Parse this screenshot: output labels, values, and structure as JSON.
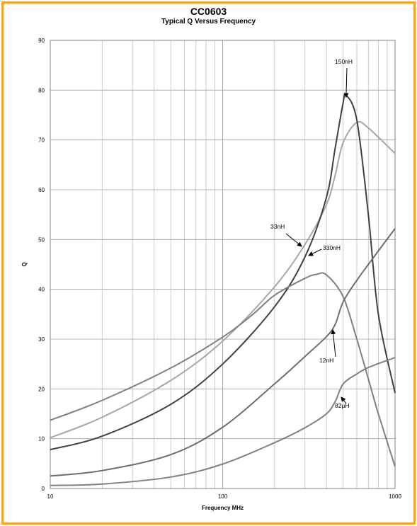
{
  "chart_data": {
    "type": "line",
    "title": "CC0603",
    "subtitle": "Typical Q Versus Frequency",
    "xlabel": "Frequency MHz",
    "ylabel": "Q",
    "xscale": "log",
    "xlim": [
      10,
      1000
    ],
    "ylim": [
      0,
      90
    ],
    "xticks": [
      "10",
      "100",
      "1000"
    ],
    "yticks": [
      "0",
      "10",
      "20",
      "30",
      "40",
      "50",
      "60",
      "70",
      "80",
      "90"
    ],
    "grid": true,
    "colors": {
      "frame": "#f5a623",
      "grid": "#bfbfbf",
      "series_dark": "#404040",
      "series_medium": "#6e6e6e",
      "series_gray": "#808080",
      "series_light": "#a6a6a6"
    },
    "series": [
      {
        "name": "33nH",
        "x": [
          10,
          20,
          50,
          100,
          200,
          300,
          400,
          450,
          500,
          600,
          700,
          1000
        ],
        "y": [
          10.2,
          14.3,
          21.7,
          29.6,
          40.5,
          49,
          57,
          63,
          69.5,
          73.5,
          72.4,
          67.3
        ]
      },
      {
        "name": "150nH",
        "x": [
          10,
          20,
          50,
          100,
          200,
          300,
          400,
          450,
          500,
          520,
          600,
          700,
          800,
          1000
        ],
        "y": [
          7.8,
          10.5,
          16.9,
          25,
          36.5,
          46.5,
          58.5,
          68.5,
          77.5,
          79,
          74,
          55,
          35,
          19.2
        ]
      },
      {
        "name": "330nH",
        "x": [
          10,
          20,
          50,
          100,
          150,
          200,
          300,
          350,
          400,
          500,
          600,
          700,
          800,
          1000
        ],
        "y": [
          13.7,
          17.7,
          24.2,
          30.4,
          35,
          38.8,
          42.2,
          43,
          42.9,
          38.5,
          30,
          22,
          15,
          4.4
        ]
      },
      {
        "name": "12nH",
        "x": [
          10,
          20,
          50,
          100,
          200,
          300,
          400,
          450,
          500,
          600,
          700,
          1000
        ],
        "y": [
          2.5,
          3.6,
          6.8,
          12.3,
          21,
          26.5,
          30.5,
          33,
          37.5,
          41.8,
          45,
          52.2
        ]
      },
      {
        "name": "82µH",
        "x": [
          10,
          20,
          50,
          100,
          200,
          300,
          400,
          450,
          500,
          600,
          700,
          1000
        ],
        "y": [
          0.6,
          0.9,
          2.3,
          4.9,
          9.2,
          12.2,
          15,
          17.5,
          21,
          23,
          24.3,
          26.3
        ]
      }
    ],
    "annotations": [
      {
        "text": "150nH",
        "target_series": "150nH"
      },
      {
        "text": "33nH",
        "target_series": "33nH"
      },
      {
        "text": "330nH",
        "target_series": "330nH"
      },
      {
        "text": "12nH",
        "target_series": "12nH"
      },
      {
        "text": "82µH",
        "target_series": "82µH"
      }
    ]
  }
}
